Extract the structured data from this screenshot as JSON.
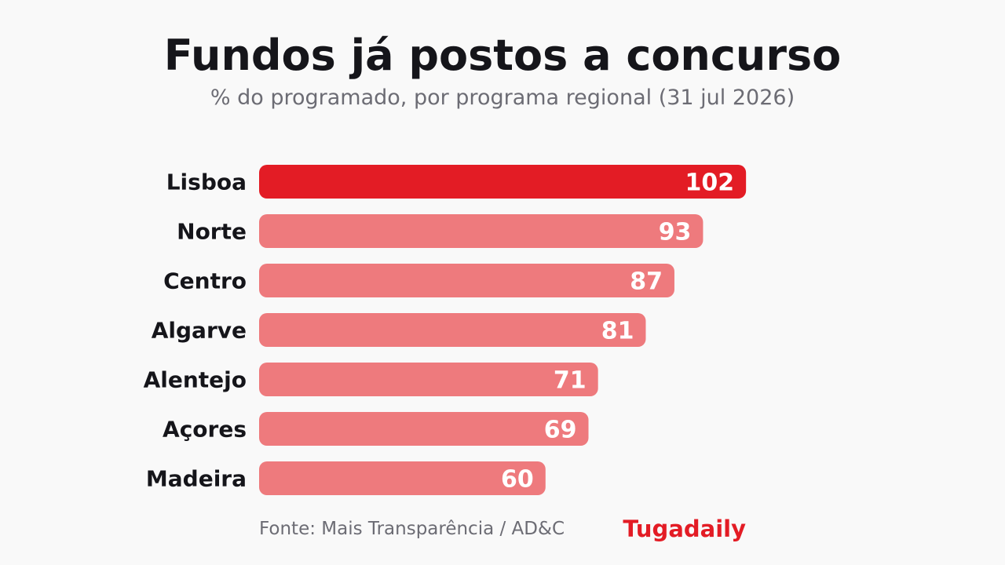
{
  "header": {
    "title": "Fundos já postos a concurso",
    "subtitle": "% do programado, por programa regional (31 jul 2026)"
  },
  "footer": {
    "source": "Fonte: Mais Transparência / AD&C",
    "brand": "Tugadaily"
  },
  "colors": {
    "highlight": "#e31c25",
    "default": "#ee7a7d",
    "label": "#15151a",
    "value_text": "#ffffff"
  },
  "chart_data": {
    "type": "bar",
    "orientation": "horizontal",
    "categories": [
      "Lisboa",
      "Norte",
      "Centro",
      "Algarve",
      "Alentejo",
      "Açores",
      "Madeira"
    ],
    "values": [
      102,
      93,
      87,
      81,
      71,
      69,
      60
    ],
    "highlight_index": 0,
    "data_labels": [
      "102",
      "93",
      "87",
      "81",
      "71",
      "69",
      "60"
    ],
    "xlim": [
      0,
      120
    ],
    "grid": false,
    "legend": "none"
  }
}
